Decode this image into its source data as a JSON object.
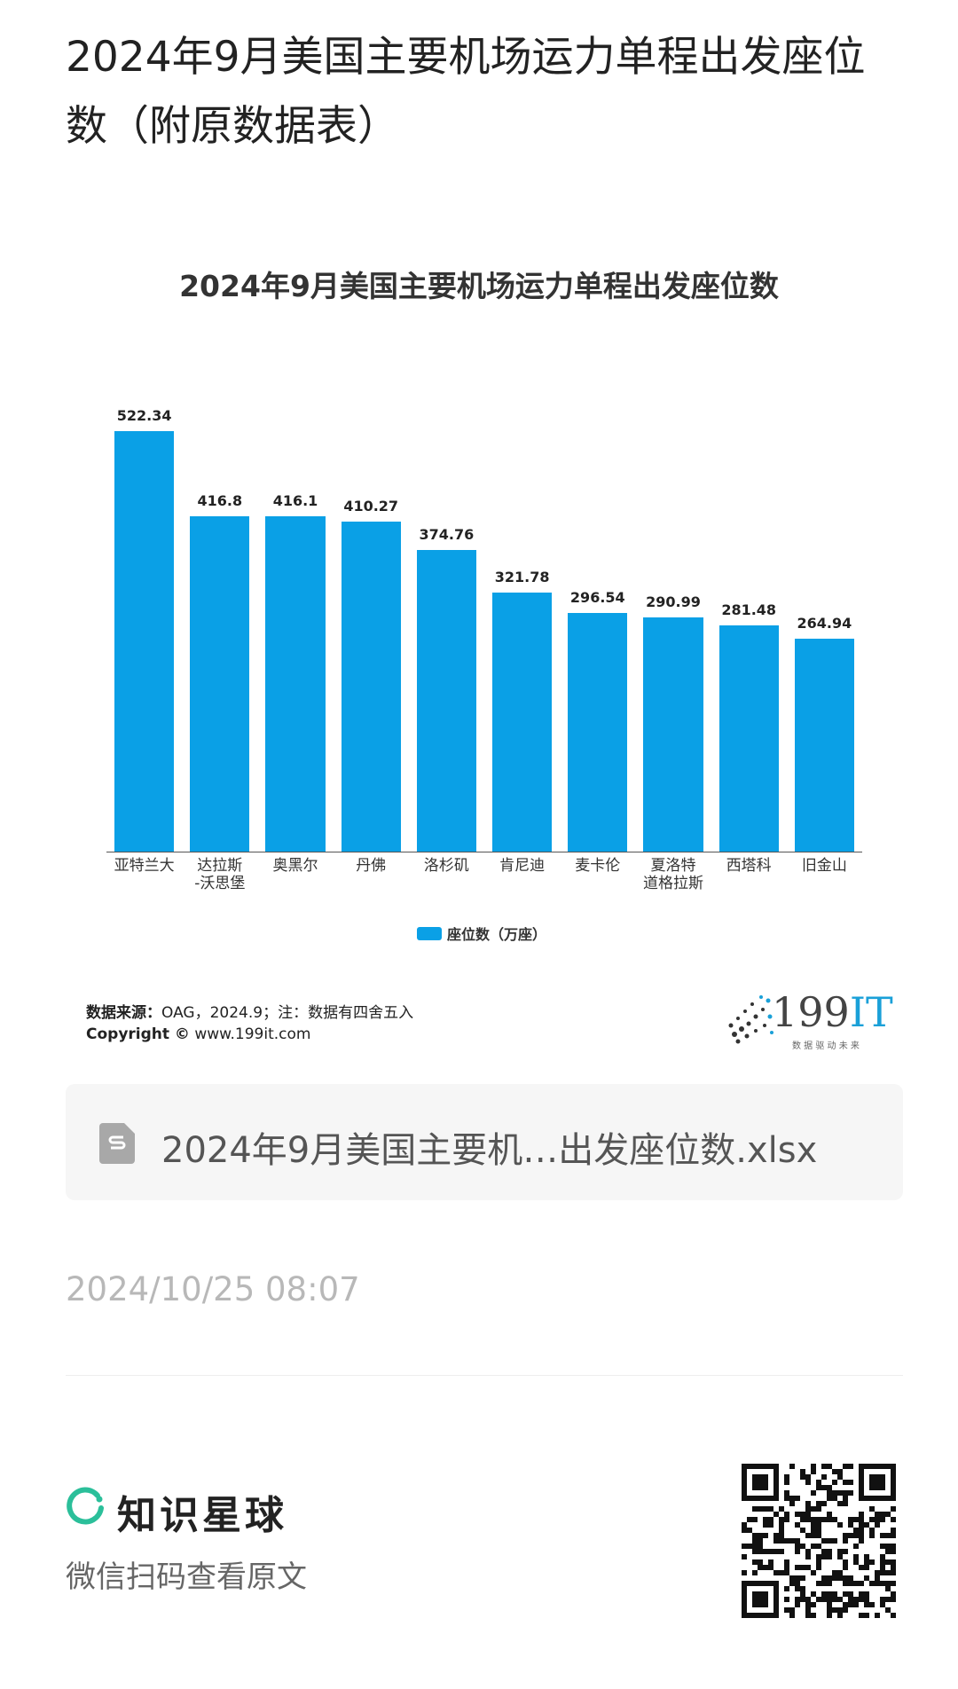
{
  "header": {
    "title": "2024年9月美国主要机场运力单程出发座位数（附原数据表）"
  },
  "chart_data": {
    "type": "bar",
    "title": "2024年9月美国主要机场运力单程出发座位数",
    "categories": [
      "亚特兰大",
      "达拉斯\n-沃思堡",
      "奥黑尔",
      "丹佛",
      "洛杉矶",
      "肯尼迪",
      "麦卡伦",
      "夏洛特\n道格拉斯",
      "西塔科",
      "旧金山"
    ],
    "series": [
      {
        "name": "座位数（万座）",
        "color": "#0aa0e6",
        "values": [
          522.34,
          416.8,
          416.1,
          410.27,
          374.76,
          321.78,
          296.54,
          290.99,
          281.48,
          264.94
        ]
      }
    ],
    "source_label": "数据来源：",
    "source": "OAG，2024.9；注：数据有四舍五入",
    "copyright_label": "Copyright ©",
    "copyright": "www.199it.com",
    "logo": "199",
    "logo_accent": "IT",
    "logo_slogan": "数 据 驱 动 未 来"
  },
  "attachment": {
    "filename": "2024年9月美国主要机…出发座位数.xlsx"
  },
  "timestamp": "2024/10/25 08:07",
  "footer": {
    "brand": "知识星球",
    "hint": "微信扫码查看原文"
  }
}
